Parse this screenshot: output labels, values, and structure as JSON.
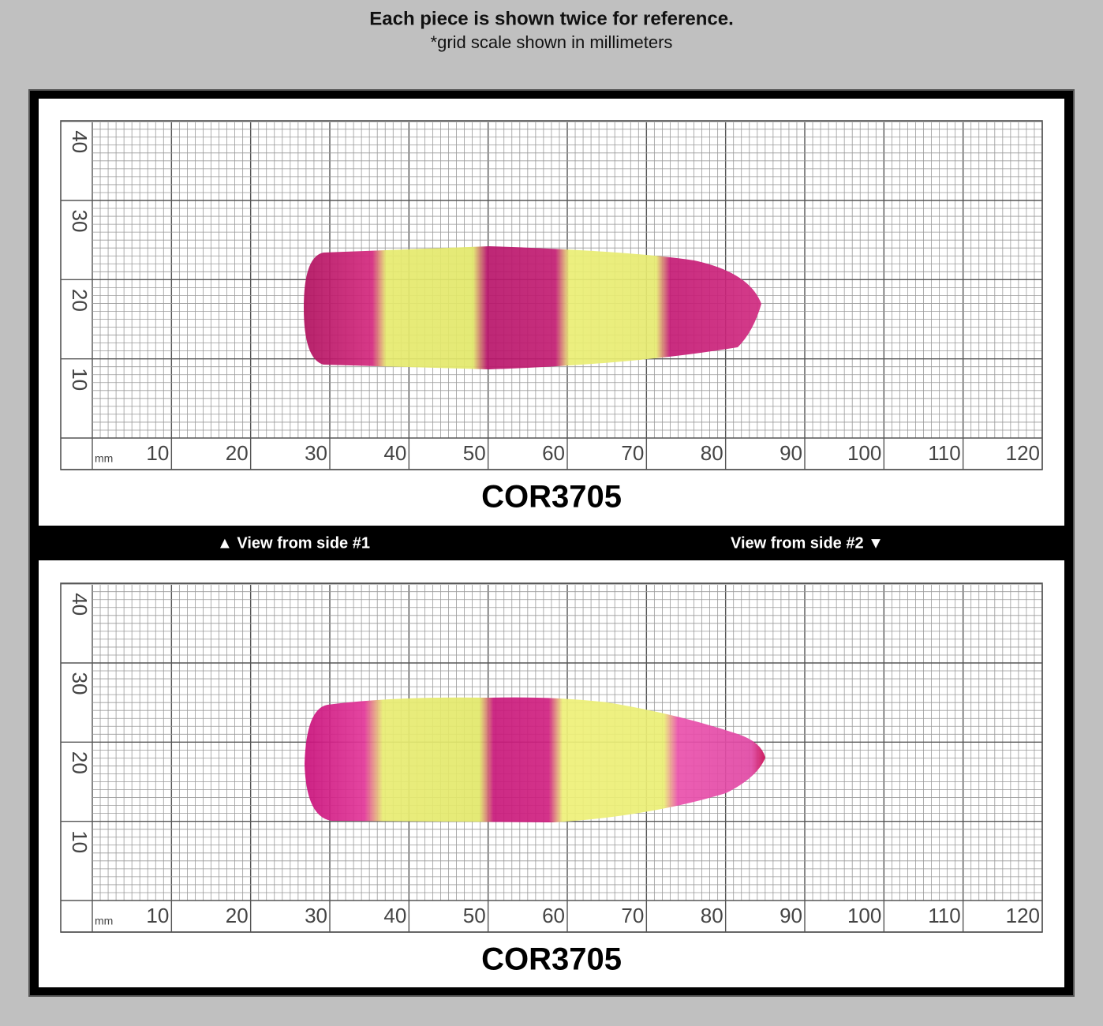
{
  "header": {
    "title": "Each piece is shown twice for reference.",
    "subtitle": "*grid scale shown in millimeters"
  },
  "panels": [
    {
      "unit": "mm",
      "x_labels": [
        10,
        20,
        30,
        40,
        50,
        60,
        70,
        80,
        90,
        100,
        110,
        120
      ],
      "y_labels": [
        10,
        20,
        30,
        40
      ],
      "code": "COR3705"
    },
    {
      "unit": "mm",
      "x_labels": [
        10,
        20,
        30,
        40,
        50,
        60,
        70,
        80,
        90,
        100,
        110,
        120
      ],
      "y_labels": [
        10,
        20,
        30,
        40
      ],
      "code": "COR3705"
    }
  ],
  "captions": {
    "left": "▲ View from side #1",
    "right": "View from side #2 ▼"
  }
}
